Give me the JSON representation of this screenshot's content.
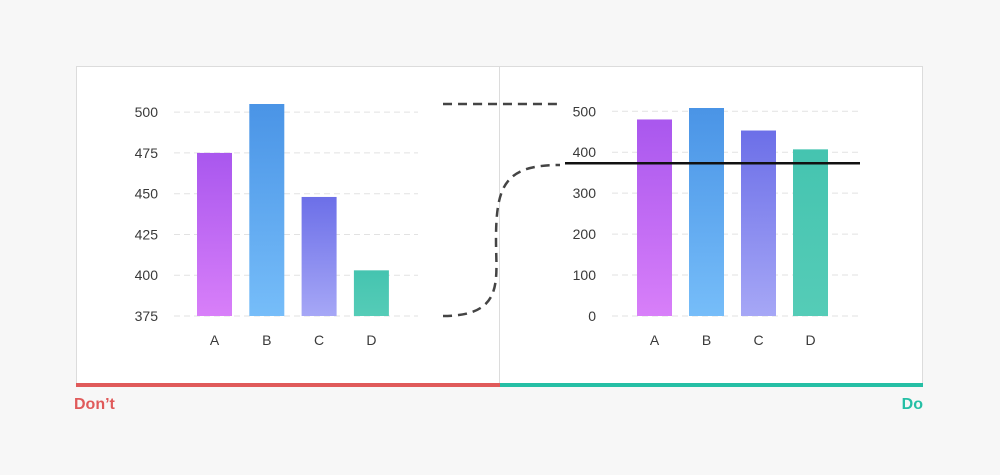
{
  "labels": {
    "dont": "Don’t",
    "do": "Do"
  },
  "colors": {
    "dont": "#e05a5a",
    "do": "#25bfa5",
    "gradients": [
      [
        "#a957ee",
        "#d87ff9"
      ],
      [
        "#4a94e6",
        "#76bdf9"
      ],
      [
        "#6c6fe8",
        "#a6a7f6"
      ],
      [
        "#45c4b0",
        "#55ccb7"
      ]
    ]
  },
  "chart_data": [
    {
      "type": "bar",
      "categories": [
        "A",
        "B",
        "C",
        "D"
      ],
      "values": [
        475,
        505,
        448,
        403
      ],
      "ylim": [
        375,
        505
      ],
      "yticks": [
        375,
        400,
        425,
        450,
        475,
        500
      ],
      "grid": true
    },
    {
      "type": "bar",
      "categories": [
        "A",
        "B",
        "C",
        "D"
      ],
      "values": [
        480,
        508,
        453,
        407
      ],
      "ylim": [
        0,
        508
      ],
      "yticks": [
        0,
        100,
        200,
        300,
        400,
        500
      ],
      "grid": true,
      "reference_line": 373
    }
  ]
}
